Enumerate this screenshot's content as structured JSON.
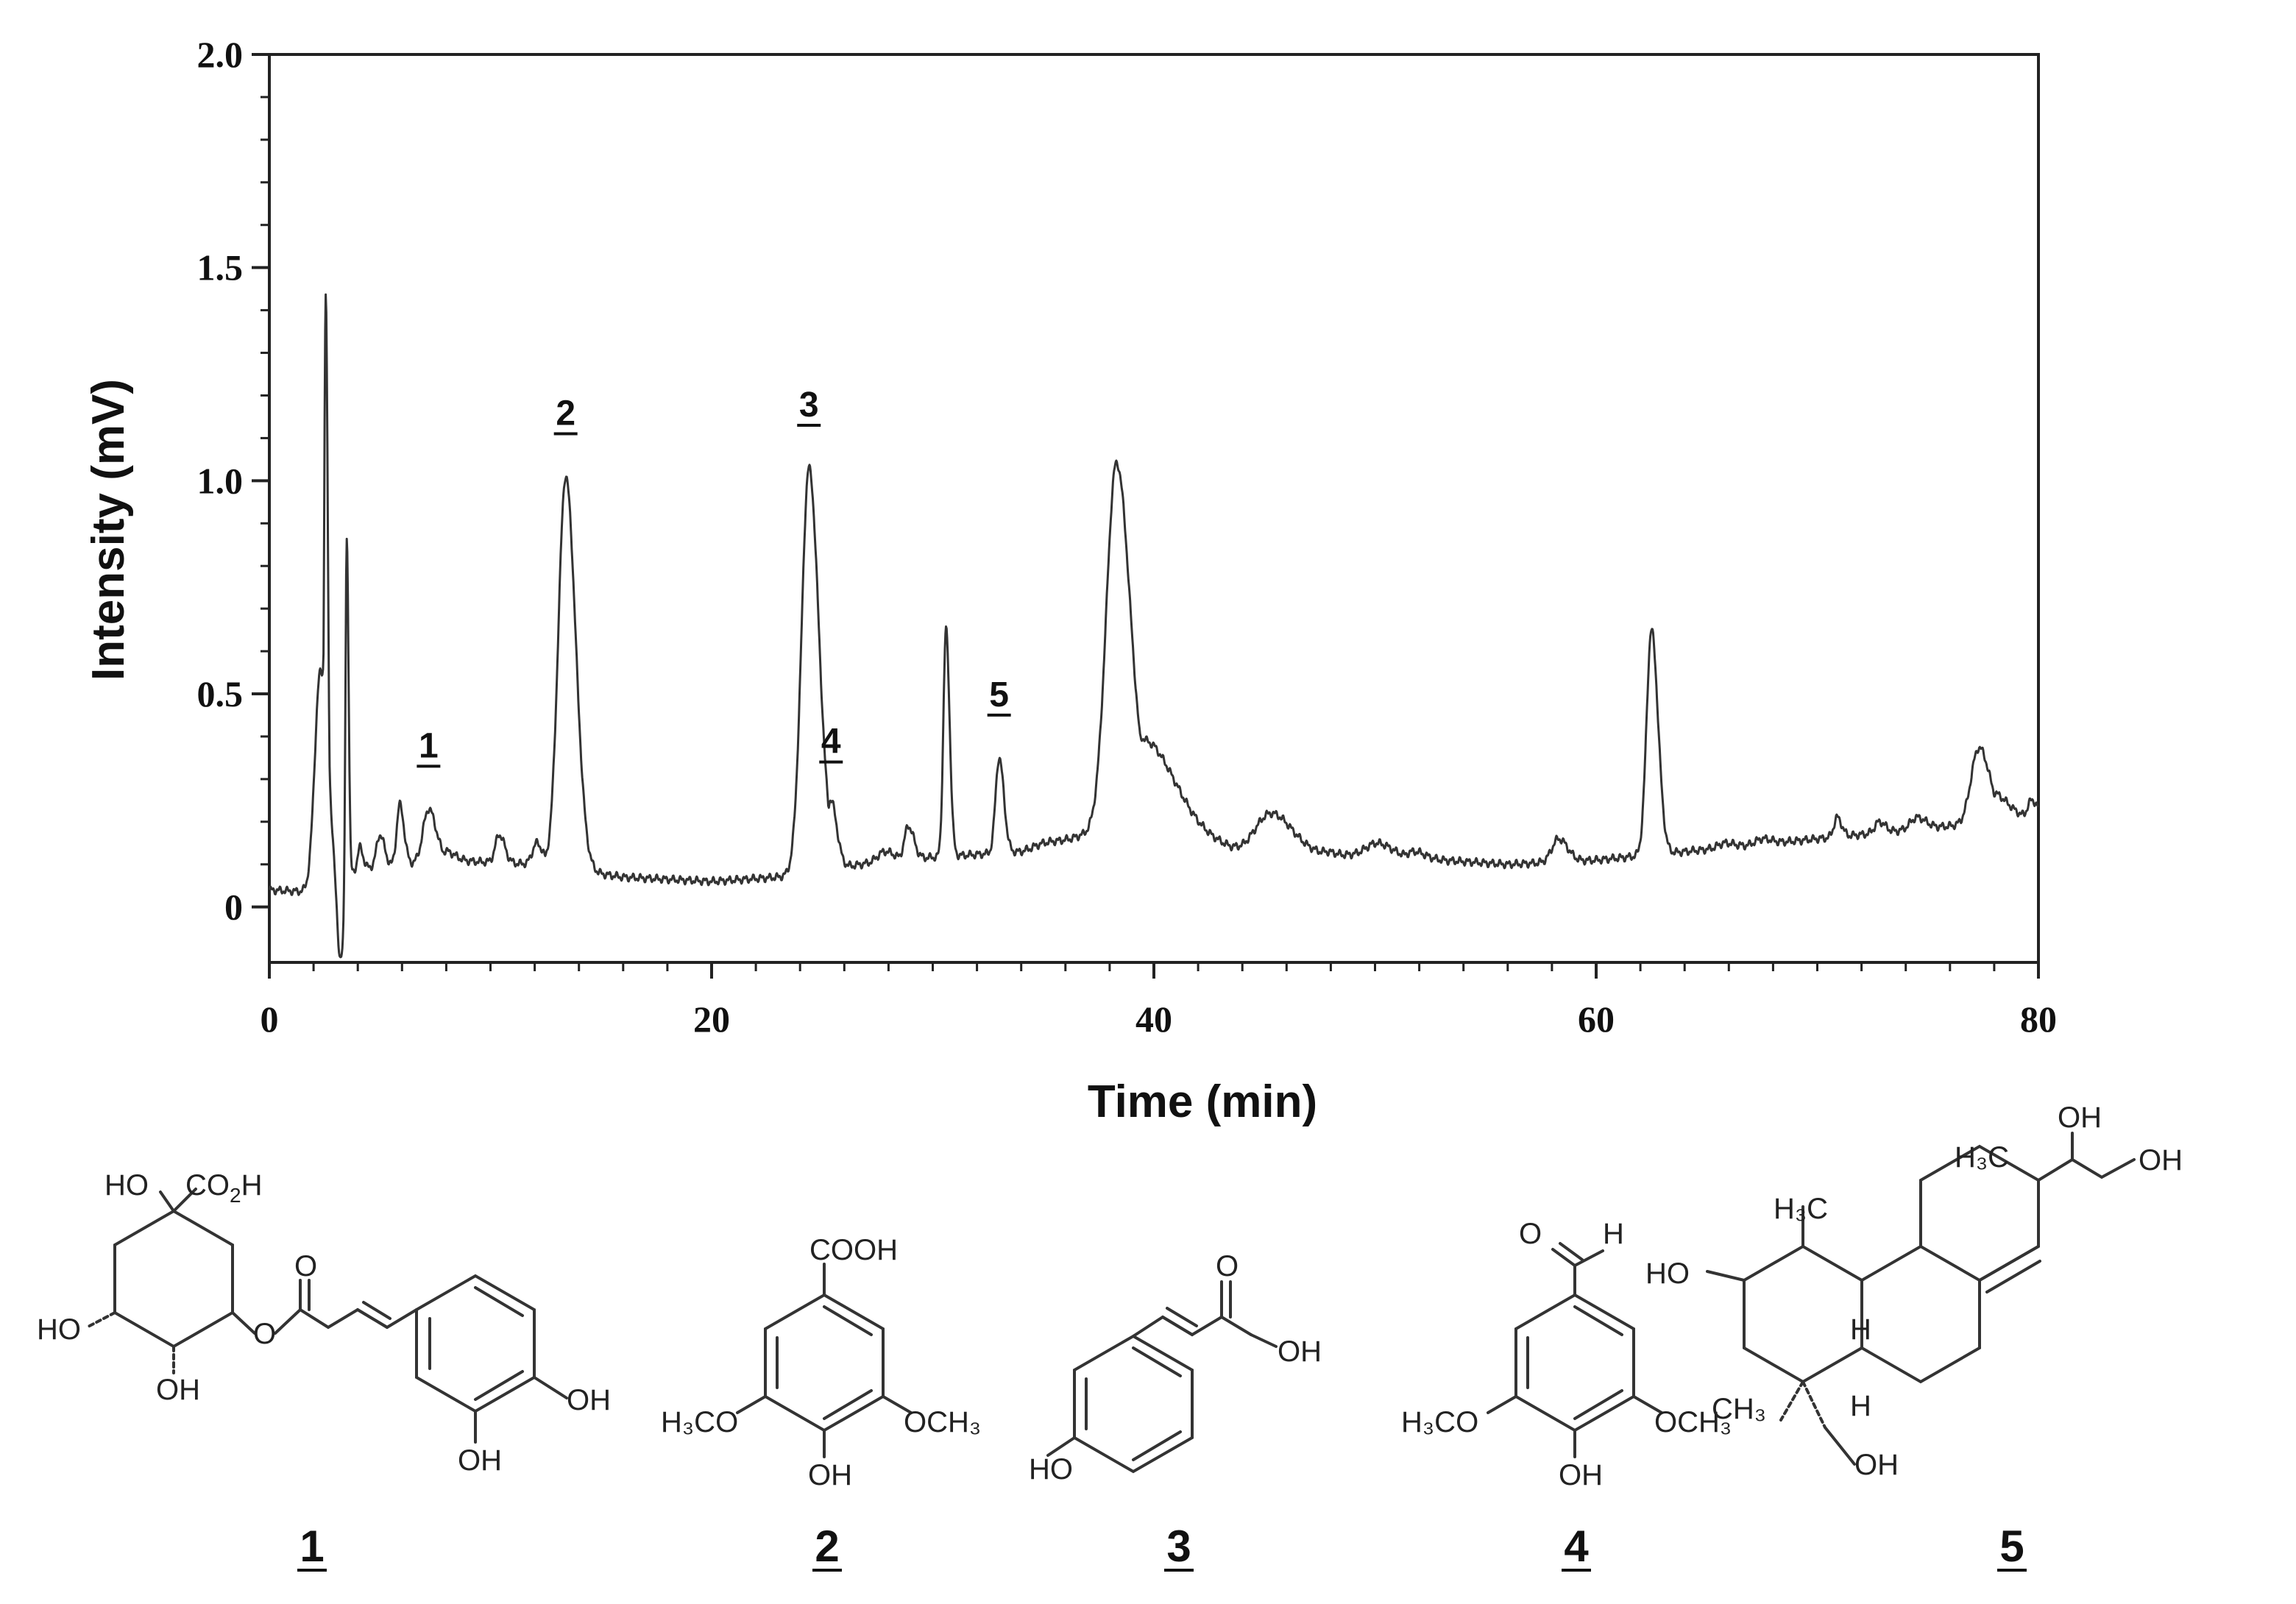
{
  "chart_data": {
    "type": "line",
    "xlabel": "Time (min)",
    "ylabel": "Intensity (mV)",
    "xlim": [
      0,
      80
    ],
    "ylim": [
      -0.13,
      2.0
    ],
    "xticks": [
      0,
      20,
      40,
      60,
      80
    ],
    "xtick_labels": [
      "0",
      "20",
      "40",
      "60",
      "80"
    ],
    "yticks": [
      0,
      0.5,
      1.0,
      1.5,
      2.0
    ],
    "ytick_labels": [
      "0",
      "0.5",
      "1.0",
      "1.5",
      "2.0"
    ],
    "grid": false,
    "baseline": [
      [
        0,
        0.04
      ],
      [
        2,
        0.035
      ],
      [
        4,
        0.09
      ],
      [
        8,
        0.11
      ],
      [
        12,
        0.1
      ],
      [
        16,
        0.07
      ],
      [
        20,
        0.06
      ],
      [
        23,
        0.07
      ],
      [
        28,
        0.11
      ],
      [
        34,
        0.13
      ],
      [
        37,
        0.17
      ],
      [
        40,
        0.2
      ],
      [
        44,
        0.13
      ],
      [
        50,
        0.12
      ],
      [
        56,
        0.1
      ],
      [
        60,
        0.11
      ],
      [
        64,
        0.13
      ],
      [
        68,
        0.15
      ],
      [
        72,
        0.17
      ],
      [
        76,
        0.19
      ],
      [
        80,
        0.21
      ]
    ],
    "peaks": [
      {
        "t": 2.3,
        "h": 0.55,
        "w": 0.25
      },
      {
        "t": 2.55,
        "h": 1.38,
        "w": 0.07
      },
      {
        "t": 3.2,
        "h": -0.13,
        "w": 0.15
      },
      {
        "t": 3.5,
        "h": 0.93,
        "w": 0.06
      },
      {
        "t": 4.1,
        "h": 0.14,
        "w": 0.1
      },
      {
        "t": 5.0,
        "h": 0.17,
        "w": 0.15
      },
      {
        "t": 5.9,
        "h": 0.24,
        "w": 0.14
      },
      {
        "t": 7.2,
        "h": 0.23,
        "w": 0.25
      },
      {
        "t": 8.0,
        "h": 0.13,
        "w": 0.3
      },
      {
        "t": 10.4,
        "h": 0.17,
        "w": 0.18
      },
      {
        "t": 12.1,
        "h": 0.15,
        "w": 0.2
      },
      {
        "t": 13.4,
        "h": 1.01,
        "w": 0.33
      },
      {
        "t": 24.4,
        "h": 1.03,
        "w": 0.33
      },
      {
        "t": 25.4,
        "h": 0.24,
        "w": 0.2
      },
      {
        "t": 27.8,
        "h": 0.13,
        "w": 0.3
      },
      {
        "t": 28.9,
        "h": 0.19,
        "w": 0.18
      },
      {
        "t": 30.6,
        "h": 0.65,
        "w": 0.12
      },
      {
        "t": 33.0,
        "h": 0.35,
        "w": 0.16
      },
      {
        "t": 35.0,
        "h": 0.15,
        "w": 0.4
      },
      {
        "t": 38.3,
        "h": 1.03,
        "w": 0.45
      },
      {
        "t": 39.6,
        "h": 0.38,
        "w": 1.0
      },
      {
        "t": 41.7,
        "h": 0.17,
        "w": 0.2
      },
      {
        "t": 45.3,
        "h": 0.22,
        "w": 0.7
      },
      {
        "t": 47.8,
        "h": 0.13,
        "w": 0.25
      },
      {
        "t": 50.1,
        "h": 0.15,
        "w": 0.5
      },
      {
        "t": 51.8,
        "h": 0.13,
        "w": 0.35
      },
      {
        "t": 58.3,
        "h": 0.16,
        "w": 0.3
      },
      {
        "t": 62.5,
        "h": 0.65,
        "w": 0.22
      },
      {
        "t": 65.8,
        "h": 0.15,
        "w": 0.3
      },
      {
        "t": 67.5,
        "h": 0.16,
        "w": 0.3
      },
      {
        "t": 70.9,
        "h": 0.21,
        "w": 0.15
      },
      {
        "t": 72.8,
        "h": 0.2,
        "w": 0.2
      },
      {
        "t": 74.5,
        "h": 0.21,
        "w": 0.3
      },
      {
        "t": 77.3,
        "h": 0.37,
        "w": 0.35
      },
      {
        "t": 78.0,
        "h": 0.26,
        "w": 0.5
      },
      {
        "t": 79.7,
        "h": 0.25,
        "w": 0.2
      }
    ],
    "annotations": [
      {
        "label": "1",
        "x": 7.2,
        "y": 0.23
      },
      {
        "label": "2",
        "x": 13.4,
        "y": 1.01
      },
      {
        "label": "3",
        "x": 24.4,
        "y": 1.03
      },
      {
        "label": "4",
        "x": 25.4,
        "y": 0.24
      },
      {
        "label": "5",
        "x": 33.0,
        "y": 0.35
      }
    ]
  },
  "compounds": {
    "c1": {
      "number": "1",
      "HO_top": "HO",
      "CO2H": "CO",
      "CO2H_sub": "2",
      "CO2H_H": "H",
      "O_carbonyl": "O",
      "O_ester": "O",
      "HO_left": "HO",
      "OH_bottom": "OH",
      "OH_catechol1": "OH",
      "OH_catechol2": "OH"
    },
    "c2": {
      "number": "2",
      "COOH": "COOH",
      "OMe_left": "H₃CO",
      "OMe_right": "OCH₃",
      "OH": "OH"
    },
    "c3": {
      "number": "3",
      "O": "O",
      "OH_acid": "OH",
      "HO": "HO"
    },
    "c4": {
      "number": "4",
      "O": "O",
      "H": "H",
      "OMe_left": "H₃CO",
      "OMe_right": "OCH₃",
      "OH": "OH"
    },
    "c5": {
      "number": "5",
      "OH_top": "OH",
      "OH_right": "OH",
      "H3C_upper": "H₃C",
      "H3C_mid": "H₃C",
      "HO_left": "HO",
      "H_mid": "H",
      "H_low": "H",
      "CH3": "CH₃",
      "OH_bottom": "OH"
    }
  }
}
